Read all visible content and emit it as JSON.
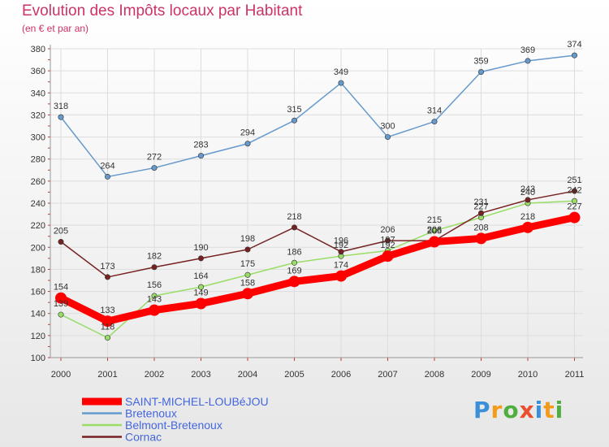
{
  "header": {
    "title": "Evolution des Impôts locaux par Habitant",
    "subtitle": "(en € et par an)"
  },
  "brand": {
    "text": "Proxiti",
    "colors": [
      "#3a8fd9",
      "#f29b1d",
      "#4fae3f",
      "#e84e2f",
      "#3a8fd9",
      "#f29b1d",
      "#4fae3f"
    ]
  },
  "chart_data": {
    "type": "line",
    "title": "Evolution des Impôts locaux par Habitant",
    "subtitle": "(en € et par an)",
    "xlabel": "",
    "ylabel": "",
    "categories": [
      "2000",
      "2001",
      "2002",
      "2003",
      "2004",
      "2005",
      "2006",
      "2007",
      "2008",
      "2009",
      "2010",
      "2011"
    ],
    "ylim": [
      100,
      380
    ],
    "yticks": [
      100,
      120,
      140,
      160,
      180,
      200,
      220,
      240,
      260,
      280,
      300,
      320,
      340,
      360,
      380
    ],
    "grid": true,
    "legend_position": "bottom-left",
    "series": [
      {
        "name": "SAINT-MICHEL-LOUBéJOU",
        "color": "#ff0000",
        "emphasis": true,
        "values": [
          154,
          133,
          143,
          149,
          158,
          169,
          174,
          192,
          205,
          208,
          218,
          227
        ]
      },
      {
        "name": "Bretenoux",
        "color": "#6699cc",
        "values": [
          318,
          264,
          272,
          283,
          294,
          315,
          349,
          300,
          314,
          359,
          369,
          374
        ]
      },
      {
        "name": "Belmont-Bretenoux",
        "color": "#99dd66",
        "values": [
          139,
          118,
          156,
          164,
          175,
          186,
          192,
          197,
          215,
          227,
          240,
          242
        ]
      },
      {
        "name": "Cornac",
        "color": "#772222",
        "values": [
          205,
          173,
          182,
          190,
          198,
          218,
          196,
          206,
          206,
          231,
          243,
          251
        ]
      }
    ]
  }
}
